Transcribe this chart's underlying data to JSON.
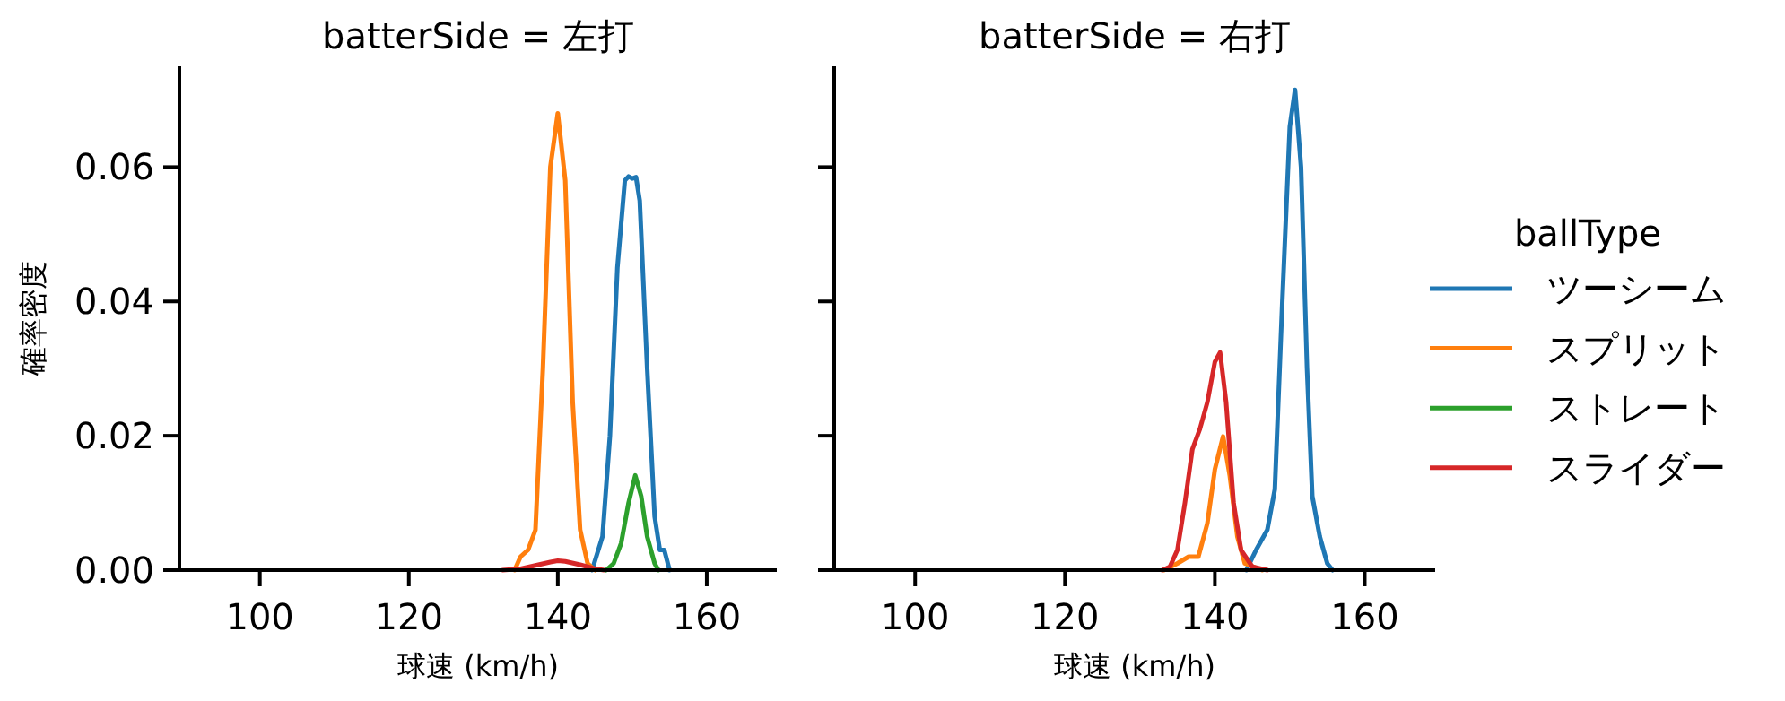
{
  "chart_data": [
    {
      "type": "line",
      "title": "batterSide = 左打",
      "xlabel": "球速 (km/h)",
      "ylabel": "確率密度",
      "xlim": [
        89.2,
        169.4
      ],
      "ylim": [
        0,
        0.075
      ],
      "xticks": [
        100,
        120,
        140,
        160
      ],
      "yticks": [
        {
          "value": 0,
          "label": "0.00"
        },
        {
          "value": 0.02,
          "label": "0.02"
        },
        {
          "value": 0.04,
          "label": "0.04"
        },
        {
          "value": 0.06,
          "label": "0.06"
        }
      ],
      "legend": "right",
      "legend_title": "ballType",
      "series": [
        {
          "name": "ツーシーム",
          "color": "#1f77b4",
          "x": [
            144.6,
            146,
            147,
            148,
            149,
            149.5,
            150,
            150.5,
            151,
            152,
            153,
            153.7,
            154.3,
            155
          ],
          "values": [
            0,
            0.005,
            0.02,
            0.045,
            0.058,
            0.0586,
            0.0583,
            0.0585,
            0.055,
            0.03,
            0.008,
            0.003,
            0.003,
            0
          ]
        },
        {
          "name": "スプリット",
          "color": "#ff7f0e",
          "x": [
            134.2,
            135,
            136,
            137,
            138,
            139,
            140,
            141,
            142,
            143,
            144,
            145
          ],
          "values": [
            0,
            0.002,
            0.003,
            0.006,
            0.03,
            0.06,
            0.068,
            0.058,
            0.025,
            0.006,
            0.001,
            0
          ]
        },
        {
          "name": "ストレート",
          "color": "#2ca02c",
          "x": [
            146.5,
            147.5,
            148.5,
            149.5,
            150.4,
            151.2,
            152,
            153,
            153.5
          ],
          "values": [
            0,
            0.001,
            0.004,
            0.01,
            0.0141,
            0.011,
            0.005,
            0.001,
            0
          ]
        },
        {
          "name": "スライダー",
          "color": "#d62728",
          "x": [
            132.6,
            135,
            137,
            139,
            140,
            141,
            143,
            145,
            146.2
          ],
          "values": [
            0,
            0.0002,
            0.0007,
            0.0012,
            0.0014,
            0.0013,
            0.0008,
            0.0002,
            0
          ]
        }
      ]
    },
    {
      "type": "line",
      "title": "batterSide = 右打",
      "xlabel": "球速 (km/h)",
      "xlim": [
        89.2,
        169.4
      ],
      "ylim": [
        0,
        0.075
      ],
      "xticks": [
        100,
        120,
        140,
        160
      ],
      "yticks": [
        {
          "value": 0,
          "label": null
        },
        {
          "value": 0.02,
          "label": null
        },
        {
          "value": 0.04,
          "label": null
        },
        {
          "value": 0.06,
          "label": null
        }
      ],
      "tick_labels": "x",
      "series": [
        {
          "color": "#1f77b4",
          "x": [
            144.2,
            145.5,
            147,
            148,
            149,
            150,
            150.7,
            151.5,
            152.3,
            153,
            154,
            155,
            155.7
          ],
          "values": [
            0,
            0.003,
            0.006,
            0.012,
            0.04,
            0.066,
            0.0715,
            0.06,
            0.03,
            0.011,
            0.005,
            0.001,
            0
          ]
        },
        {
          "color": "#ff7f0e",
          "x": [
            133.2,
            135,
            136.5,
            137.8,
            139,
            140,
            141.1,
            142,
            143,
            144,
            146.3
          ],
          "values": [
            0,
            0.001,
            0.002,
            0.002,
            0.007,
            0.015,
            0.0199,
            0.014,
            0.005,
            0.001,
            0
          ]
        },
        {
          "color": "#d62728",
          "x": [
            133,
            134,
            135,
            136,
            137,
            138,
            139,
            140,
            140.7,
            141.5,
            142.5,
            143.5,
            145,
            147
          ],
          "values": [
            0,
            0.0005,
            0.003,
            0.01,
            0.018,
            0.021,
            0.025,
            0.031,
            0.0324,
            0.025,
            0.01,
            0.003,
            0.0005,
            0
          ]
        }
      ]
    }
  ]
}
